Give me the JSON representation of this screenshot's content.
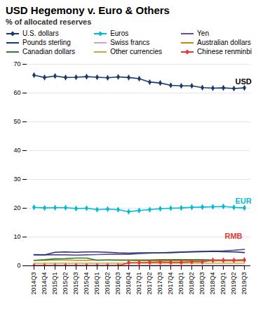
{
  "chart_data": {
    "type": "line",
    "title": "USD Hegemony v. Euro & Others",
    "subtitle": "% of allocated reserves",
    "categories": [
      "2014Q3",
      "2014Q4",
      "2015Q1",
      "2015Q2",
      "2015Q3",
      "2015Q4",
      "2016Q1",
      "2016Q2",
      "2016Q3",
      "2016Q4",
      "2017Q1",
      "2017Q2",
      "2017Q3",
      "2017Q4",
      "2018Q1",
      "2018Q2",
      "2018Q3",
      "2018Q4",
      "2019Q1",
      "2019Q2",
      "2019Q3"
    ],
    "series": [
      {
        "name": "U.S. dollars",
        "color": "#1a3a6b",
        "marker": "diamond",
        "values": [
          66.2,
          65.4,
          65.9,
          65.4,
          65.5,
          65.7,
          65.5,
          65.3,
          65.6,
          65.4,
          65.0,
          63.8,
          63.5,
          62.7,
          62.5,
          62.5,
          61.9,
          61.7,
          61.8,
          61.6,
          61.8
        ]
      },
      {
        "name": "Euros",
        "color": "#00bcd4",
        "marker": "diamond",
        "values": [
          20.3,
          20.1,
          20.2,
          20.2,
          19.9,
          20.0,
          19.5,
          19.7,
          19.5,
          18.8,
          19.2,
          19.5,
          19.8,
          20.0,
          20.1,
          20.3,
          20.4,
          20.5,
          20.6,
          20.3,
          20.1
        ]
      },
      {
        "name": "Yen",
        "color": "#6a4c9c",
        "values": [
          3.9,
          3.8,
          3.8,
          3.8,
          3.7,
          3.8,
          3.9,
          4.0,
          4.0,
          4.0,
          4.2,
          4.4,
          4.5,
          4.7,
          4.8,
          4.9,
          5.0,
          5.1,
          5.2,
          5.4,
          5.7
        ]
      },
      {
        "name": "Pounds sterling",
        "color": "#1a3a6b",
        "values": [
          3.8,
          3.8,
          4.7,
          4.8,
          4.7,
          4.8,
          4.8,
          4.7,
          4.5,
          4.4,
          4.5,
          4.5,
          4.5,
          4.5,
          4.7,
          4.8,
          4.9,
          5.0,
          4.9,
          4.8,
          4.6
        ]
      },
      {
        "name": "Swiss francs",
        "color": "#d8a0c8",
        "values": [
          0.3,
          0.3,
          0.3,
          0.3,
          0.3,
          0.3,
          0.3,
          0.3,
          0.3,
          0.2,
          0.2,
          0.2,
          0.2,
          0.2,
          0.2,
          0.2,
          0.2,
          0.2,
          0.2,
          0.2,
          0.2
        ]
      },
      {
        "name": "Australian dollars",
        "color": "#c8860a",
        "values": [
          1.9,
          1.9,
          2.0,
          2.0,
          1.9,
          1.9,
          2.0,
          2.0,
          1.9,
          1.9,
          1.8,
          1.8,
          1.8,
          1.8,
          1.8,
          1.8,
          1.7,
          1.7,
          1.7,
          1.7,
          1.7
        ]
      },
      {
        "name": "Canadian dollars",
        "color": "#2e7d32",
        "values": [
          1.9,
          2.1,
          2.4,
          2.5,
          2.7,
          2.7,
          1.9,
          2.0,
          2.0,
          2.0,
          2.0,
          2.0,
          2.1,
          2.1,
          2.1,
          2.1,
          2.1,
          2.0,
          2.0,
          2.0,
          2.0
        ]
      },
      {
        "name": "Other currencies",
        "color": "#b8b040",
        "values": [
          0.9,
          0.9,
          0.9,
          0.9,
          0.9,
          0.9,
          0.9,
          0.9,
          0.9,
          0.9,
          0.9,
          0.9,
          0.9,
          0.9,
          0.9,
          0.9,
          0.9,
          0.9,
          0.9,
          0.9,
          0.9
        ]
      },
      {
        "name": "Chinese renminbi",
        "color": "#e53935",
        "marker": "diamond",
        "values": [
          0.0,
          0.0,
          0.0,
          0.0,
          0.0,
          0.0,
          0.0,
          0.0,
          0.0,
          1.1,
          1.1,
          1.2,
          1.3,
          1.2,
          1.2,
          1.4,
          1.4,
          1.9,
          1.9,
          1.9,
          2.0
        ]
      }
    ],
    "ylim": [
      0,
      70
    ],
    "yticks": [
      0,
      10,
      20,
      30,
      40,
      50,
      60,
      70
    ],
    "grid": true,
    "annotations": [
      {
        "text": "USD",
        "x": "2019Q2",
        "y": 63.0,
        "color": "#000000"
      },
      {
        "text": "EUR",
        "x": "2019Q2",
        "y": 21.5,
        "color": "#00bcd4"
      },
      {
        "text": "RMB",
        "x": "2019Q1",
        "y": 9.5,
        "color": "#e53935"
      }
    ]
  }
}
